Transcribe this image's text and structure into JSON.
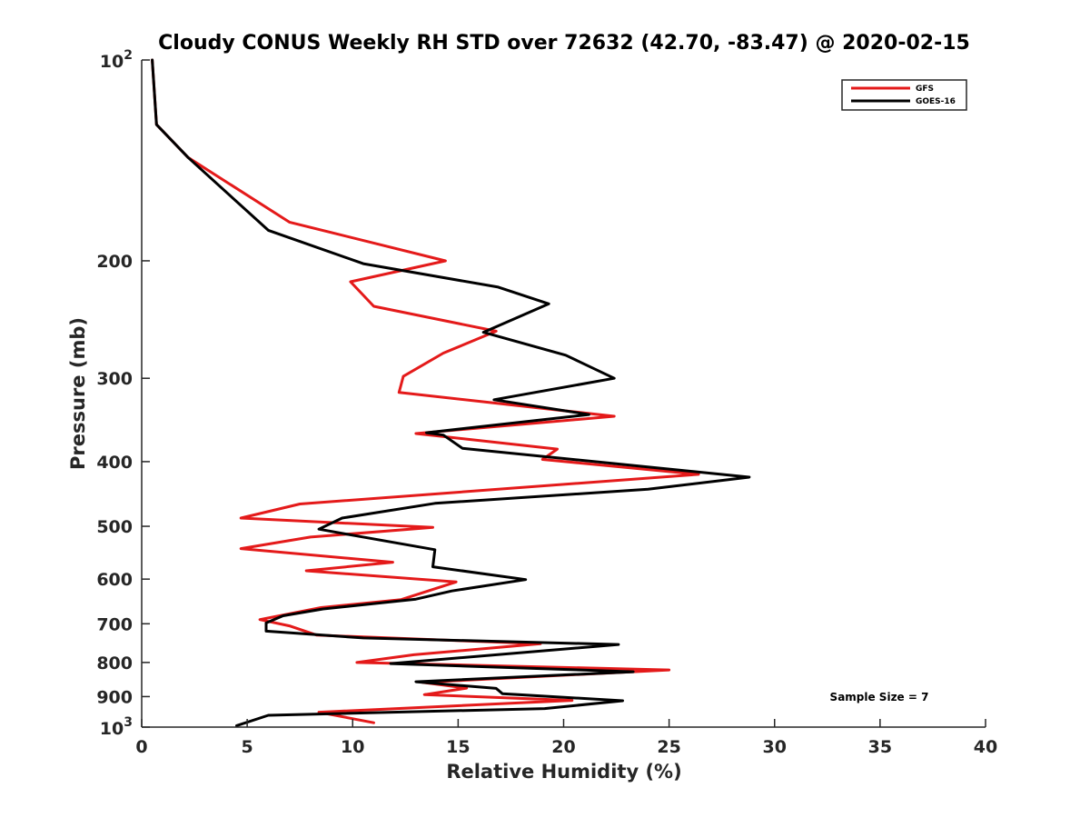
{
  "chart_data": {
    "type": "line",
    "title": "Cloudy CONUS Weekly RH STD over 72632 (42.70, -83.47) @ 2020-02-15",
    "xlabel": "Relative Humidity (%)",
    "ylabel": "Pressure (mb)",
    "xlim": [
      0,
      40
    ],
    "ylim": [
      100,
      1000
    ],
    "y_scale": "log",
    "y_reversed": true,
    "grid": false,
    "legend_position": "top-right",
    "x_ticks": [
      0,
      5,
      10,
      15,
      20,
      25,
      30,
      35,
      40
    ],
    "y_ticks": [
      {
        "value": 100,
        "base": "10",
        "exp": "2"
      },
      {
        "value": 200,
        "label": "200"
      },
      {
        "value": 300,
        "label": "300"
      },
      {
        "value": 400,
        "label": "400"
      },
      {
        "value": 500,
        "label": "500"
      },
      {
        "value": 600,
        "label": "600"
      },
      {
        "value": 700,
        "label": "700"
      },
      {
        "value": 800,
        "label": "800"
      },
      {
        "value": 900,
        "label": "900"
      },
      {
        "value": 1000,
        "base": "10",
        "exp": "3"
      }
    ],
    "annotation": "Sample Size = 7",
    "series": [
      {
        "name": "GFS",
        "color": "#e41a1a",
        "points": [
          [
            0.5,
            100
          ],
          [
            0.7,
            125
          ],
          [
            2.2,
            140
          ],
          [
            7.0,
            175
          ],
          [
            14.4,
            200
          ],
          [
            9.9,
            215
          ],
          [
            11.0,
            234
          ],
          [
            16.8,
            255
          ],
          [
            14.3,
            275
          ],
          [
            12.4,
            298
          ],
          [
            12.2,
            315
          ],
          [
            22.4,
            342
          ],
          [
            13.0,
            363
          ],
          [
            19.7,
            383
          ],
          [
            19.0,
            397
          ],
          [
            26.4,
            418
          ],
          [
            7.5,
            463
          ],
          [
            4.7,
            486
          ],
          [
            13.8,
            502
          ],
          [
            8.0,
            519
          ],
          [
            4.7,
            540
          ],
          [
            11.9,
            566
          ],
          [
            7.8,
            583
          ],
          [
            14.9,
            606
          ],
          [
            12.3,
            644
          ],
          [
            8.5,
            662
          ],
          [
            5.6,
            690
          ],
          [
            7.0,
            705
          ],
          [
            8.3,
            728
          ],
          [
            18.9,
            750
          ],
          [
            12.9,
            779
          ],
          [
            10.2,
            800
          ],
          [
            25.0,
            821
          ],
          [
            13.3,
            857
          ],
          [
            15.4,
            874
          ],
          [
            13.4,
            894
          ],
          [
            20.4,
            912
          ],
          [
            8.4,
            950
          ],
          [
            11.0,
            985
          ]
        ]
      },
      {
        "name": "GOES-16",
        "color": "#000000",
        "points": [
          [
            0.5,
            100
          ],
          [
            0.7,
            125
          ],
          [
            2.2,
            140
          ],
          [
            6.0,
            180
          ],
          [
            10.5,
            202
          ],
          [
            16.9,
            219
          ],
          [
            19.3,
            232
          ],
          [
            16.2,
            256
          ],
          [
            20.1,
            277
          ],
          [
            22.4,
            300
          ],
          [
            16.7,
            323
          ],
          [
            21.2,
            340
          ],
          [
            13.5,
            362
          ],
          [
            14.3,
            365
          ],
          [
            15.2,
            382
          ],
          [
            24.2,
            408
          ],
          [
            28.8,
            422
          ],
          [
            24.0,
            440
          ],
          [
            13.9,
            462
          ],
          [
            9.5,
            486
          ],
          [
            8.4,
            505
          ],
          [
            10.2,
            517
          ],
          [
            13.9,
            542
          ],
          [
            13.8,
            575
          ],
          [
            18.2,
            601
          ],
          [
            14.7,
            625
          ],
          [
            13.0,
            643
          ],
          [
            8.6,
            665
          ],
          [
            6.7,
            681
          ],
          [
            5.9,
            698
          ],
          [
            5.9,
            718
          ],
          [
            10.5,
            735
          ],
          [
            22.6,
            752
          ],
          [
            11.8,
            803
          ],
          [
            23.3,
            826
          ],
          [
            13.0,
            855
          ],
          [
            16.8,
            875
          ],
          [
            17.1,
            891
          ],
          [
            22.8,
            913
          ],
          [
            19.1,
            938
          ],
          [
            6.0,
            960
          ],
          [
            4.5,
            995
          ]
        ]
      }
    ]
  }
}
